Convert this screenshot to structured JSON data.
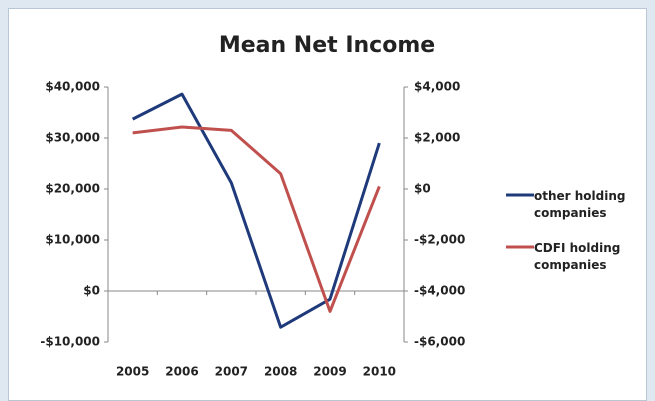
{
  "chart_data": {
    "type": "line",
    "title": "Mean Net Income",
    "categories": [
      "2005",
      "2006",
      "2007",
      "2008",
      "2009",
      "2010"
    ],
    "series": [
      {
        "name": "other holding companies",
        "color": "#1f3a7a",
        "values": [
          33700,
          38600,
          21200,
          -7100,
          -1600,
          29000
        ]
      },
      {
        "name": "CDFI holding companies",
        "color": "#c0504d",
        "axis": "y2",
        "values": [
          2200,
          2430,
          2300,
          600,
          -4800,
          100
        ]
      }
    ],
    "ylim": [
      -10000,
      40000
    ],
    "yticks": [
      {
        "value": -10000,
        "label": "-$10,000"
      },
      {
        "value": 0,
        "label": "$0"
      },
      {
        "value": 10000,
        "label": "$10,000"
      },
      {
        "value": 20000,
        "label": "$20,000"
      },
      {
        "value": 30000,
        "label": "$30,000"
      },
      {
        "value": 40000,
        "label": "$40,000"
      }
    ],
    "y2lim": [
      -6000,
      4000
    ],
    "y2ticks": [
      {
        "value": -6000,
        "label": "-$6,000"
      },
      {
        "value": -4000,
        "label": "-$4,000"
      },
      {
        "value": -2000,
        "label": "-$2,000"
      },
      {
        "value": 0,
        "label": "$0"
      },
      {
        "value": 2000,
        "label": "$2,000"
      },
      {
        "value": 4000,
        "label": "$4,000"
      }
    ],
    "legend": "right",
    "grid": false
  }
}
